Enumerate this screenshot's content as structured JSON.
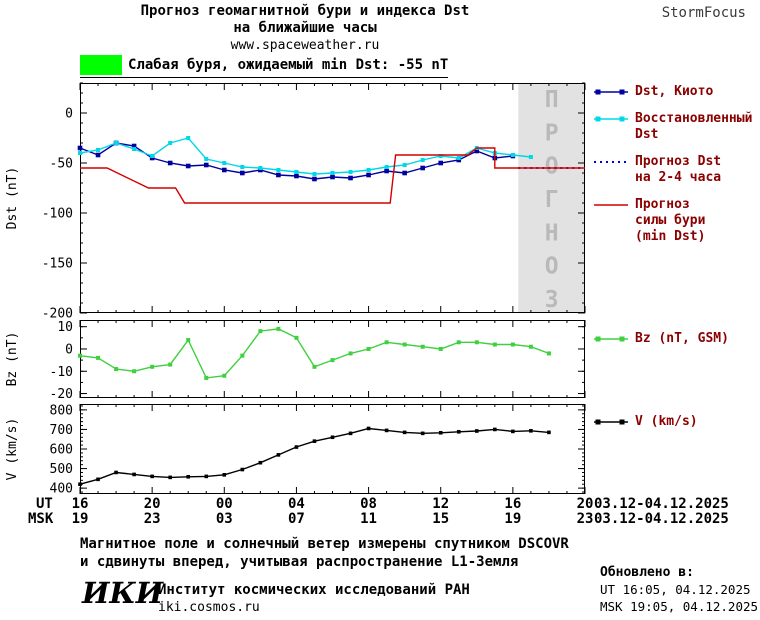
{
  "header": {
    "title_line1": "Прогноз геомагнитной бури и индекса Dst",
    "title_line2": "на ближайшие часы",
    "website": "www.spaceweather.ru",
    "brand": "StormFocus"
  },
  "storm_badge": {
    "color": "#00ff00",
    "label": "Слабая буря, ожидаемый min Dst: -55 nT"
  },
  "legend": {
    "text_color": "#8b0000",
    "items": [
      {
        "lines": [
          "Dst, Киото"
        ]
      },
      {
        "lines": [
          "Восстановленный",
          "Dst"
        ]
      },
      {
        "lines": [
          "Прогноз Dst",
          "на 2-4 часа"
        ]
      },
      {
        "lines": [
          "Прогноз",
          "силы бури",
          "(min Dst)"
        ]
      }
    ],
    "bz_label": "Bz (nT, GSM)",
    "v_label": "V (km/s)"
  },
  "chart_data": [
    {
      "type": "line",
      "name": "dst",
      "title": "Прогноз геомагнитной бури и индекса Dst на ближайшие часы",
      "xlabel": "UT (hours 03.12-04.12.2025)",
      "ylabel": "Dst (nT)",
      "xlim": [
        16,
        44
      ],
      "ylim": [
        -200,
        30
      ],
      "yticks": [
        0,
        -50,
        -100,
        -150,
        -200
      ],
      "yminor": 10,
      "xticks": [
        16,
        20,
        24,
        28,
        32,
        36,
        40,
        44
      ],
      "forecast_band": {
        "from": 40.3,
        "to": 44,
        "label": "ПРОГНОЗ",
        "fill": "#e2e2e2",
        "text_color": "#b9b9b9"
      },
      "series": [
        {
          "name": "Dst, Киото",
          "color": "#0000a0",
          "marker": "square",
          "marker_size": 4.6,
          "x": [
            16,
            17,
            18,
            19,
            20,
            21,
            22,
            23,
            24,
            25,
            26,
            27,
            28,
            29,
            30,
            31,
            32,
            33,
            34,
            35,
            36,
            37,
            38,
            39,
            40
          ],
          "y": [
            -35,
            -42,
            -30,
            -33,
            -45,
            -50,
            -53,
            -52,
            -57,
            -60,
            -57,
            -62,
            -63,
            -66,
            -64,
            -65,
            -62,
            -58,
            -60,
            -55,
            -50,
            -47,
            -38,
            -45,
            -43
          ]
        },
        {
          "name": "Восстановленный Dst",
          "color": "#00d8e8",
          "marker": "square",
          "marker_size": 4,
          "x": [
            16,
            17,
            18,
            19,
            20,
            21,
            22,
            23,
            24,
            25,
            26,
            27,
            28,
            29,
            30,
            31,
            32,
            33,
            34,
            35,
            36,
            37,
            38,
            39,
            40,
            41
          ],
          "y": [
            -40,
            -37,
            -30,
            -36,
            -43,
            -30,
            -25,
            -46,
            -50,
            -54,
            -55,
            -57,
            -59,
            -61,
            -60,
            -59,
            -57,
            -54,
            -52,
            -47,
            -43,
            -45,
            -35,
            -40,
            -42,
            -44
          ]
        },
        {
          "name": "Прогноз Dst на 2-4 часа",
          "color": "#0000e8",
          "dash": true,
          "x": [
            40.3,
            44
          ],
          "y": [
            -55,
            -55
          ]
        },
        {
          "name": "Прогноз силы бури (min Dst)",
          "color": "#d40000",
          "x": [
            16,
            17.5,
            19.8,
            21.3,
            21.8,
            33.2,
            33.5,
            37.5,
            38,
            39,
            39,
            44
          ],
          "y": [
            -55,
            -55,
            -75,
            -75,
            -90,
            -90,
            -42,
            -42,
            -35,
            -35,
            -55,
            -55
          ]
        }
      ]
    },
    {
      "type": "line",
      "name": "bz",
      "ylabel": "Bz (nT)",
      "xlim": [
        16,
        44
      ],
      "ylim": [
        -22,
        13
      ],
      "yticks": [
        10,
        0,
        -10,
        -20
      ],
      "yminor": 5,
      "xticks": [
        16,
        20,
        24,
        28,
        32,
        36,
        40,
        44
      ],
      "series": [
        {
          "name": "Bz (nT, GSM)",
          "color": "#3fd03f",
          "marker": "square",
          "marker_size": 4,
          "x": [
            16,
            17,
            18,
            19,
            20,
            21,
            22,
            23,
            24,
            25,
            26,
            27,
            28,
            29,
            30,
            31,
            32,
            33,
            34,
            35,
            36,
            37,
            38,
            39,
            40,
            41,
            42
          ],
          "y": [
            -3,
            -4,
            -9,
            -10,
            -8,
            -7,
            4,
            -13,
            -12,
            -3,
            8,
            9,
            5,
            -8,
            -5,
            -2,
            0,
            3,
            2,
            1,
            0,
            3,
            3,
            2,
            2,
            1,
            -2
          ]
        }
      ]
    },
    {
      "type": "line",
      "name": "v",
      "ylabel": "V (km/s)",
      "xlim": [
        16,
        44
      ],
      "ylim": [
        370,
        830
      ],
      "yticks": [
        800,
        700,
        600,
        500,
        400
      ],
      "yminor": 20,
      "xticks": [
        16,
        20,
        24,
        28,
        32,
        36,
        40,
        44
      ],
      "series": [
        {
          "name": "V (km/s)",
          "color": "#000000",
          "marker": "square",
          "marker_size": 3.6,
          "x": [
            16,
            17,
            18,
            19,
            20,
            21,
            22,
            23,
            24,
            25,
            26,
            27,
            28,
            29,
            30,
            31,
            32,
            33,
            34,
            35,
            36,
            37,
            38,
            39,
            40,
            41,
            42
          ],
          "y": [
            420,
            445,
            480,
            470,
            460,
            455,
            458,
            460,
            468,
            495,
            530,
            570,
            610,
            640,
            660,
            680,
            705,
            695,
            685,
            680,
            683,
            688,
            692,
            700,
            690,
            693,
            685
          ]
        }
      ]
    }
  ],
  "xaxis": {
    "ut_label": "UT",
    "msk_label": "MSK",
    "ut_ticks": [
      "16",
      "20",
      "00",
      "04",
      "08",
      "12",
      "16",
      "20"
    ],
    "msk_ticks": [
      "19",
      "23",
      "03",
      "07",
      "11",
      "15",
      "19",
      "23"
    ],
    "ut_date": "03.12-04.12.2025",
    "msk_date": "03.12-04.12.2025"
  },
  "footer": {
    "note_line1": "Магнитное поле и солнечный ветер измерены спутником DSCOVR",
    "note_line2": "и сдвинуты вперед, учитывая распространение L1-Земля",
    "logo": "ИКИ",
    "institute": "Институт космических исследований РАН",
    "institute_url": "iki.cosmos.ru",
    "updated_header": "Обновлено в:",
    "updated_ut": "UT  16:05, 04.12.2025",
    "updated_msk": "MSK 19:05, 04.12.2025"
  }
}
